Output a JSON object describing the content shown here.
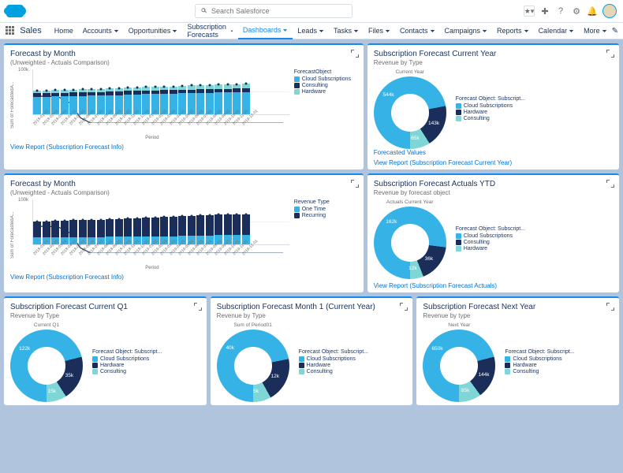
{
  "search_placeholder": "Search Salesforce",
  "app_label": "Sales",
  "nav": [
    "Home",
    "Accounts",
    "Opportunities",
    "Subscription Forecasts",
    "Dashboards",
    "Leads",
    "Tasks",
    "Files",
    "Contacts",
    "Campaigns",
    "Reports",
    "Calendar",
    "More"
  ],
  "nav_active_index": 4,
  "colors": {
    "cloud": "#36b3e6",
    "consulting": "#1b2e5a",
    "hardware": "#7fd6d6",
    "onetime": "#36b3e6",
    "recurring": "#1b2e5a",
    "donut_light": "#36b3e6",
    "donut_dark": "#1b2e5a",
    "donut_teal": "#7fd6d6"
  },
  "periods": [
    "2018-01-01",
    "2018-02-01",
    "2018-03-01",
    "2018-04-01",
    "2018-05-01",
    "2018-06-01",
    "2018-07-01",
    "2018-08-01",
    "2018-09-01",
    "2018-10-01",
    "2018-11-01",
    "2018-12-01",
    "2019-01-01",
    "2019-02-01",
    "2019-03-01",
    "2019-04-01",
    "2019-05-01",
    "2019-06-01",
    "2019-07-01",
    "2019-08-01",
    "2019-09-01",
    "2019-10-01",
    "2019-11-01",
    "2019-12-01"
  ],
  "chart_axis": {
    "ylabel": "Sum of ForecastedA...",
    "ytick": "100k",
    "xlabel": "Period"
  },
  "chart1": {
    "title": "Forecast by Month",
    "subtitle": "(Unweighted - Actuals Comparison)",
    "legend_title": "ForecastObject",
    "legend": [
      "Cloud Subscriptions",
      "Consulting",
      "Hardware"
    ],
    "link": "View Report (Subscription Forecast Info)",
    "series": [
      {
        "a": 38,
        "b": 8,
        "c": 6
      },
      {
        "a": 38,
        "b": 8,
        "c": 6
      },
      {
        "a": 39,
        "b": 8,
        "c": 6
      },
      {
        "a": 39,
        "b": 8,
        "c": 6
      },
      {
        "a": 40,
        "b": 8,
        "c": 6
      },
      {
        "a": 40,
        "b": 8,
        "c": 7
      },
      {
        "a": 41,
        "b": 8,
        "c": 7
      },
      {
        "a": 41,
        "b": 8,
        "c": 7
      },
      {
        "a": 42,
        "b": 8,
        "c": 7
      },
      {
        "a": 42,
        "b": 8,
        "c": 7
      },
      {
        "a": 43,
        "b": 8,
        "c": 7
      },
      {
        "a": 43,
        "b": 8,
        "c": 8
      },
      {
        "a": 44,
        "b": 8,
        "c": 8
      },
      {
        "a": 44,
        "b": 8,
        "c": 8
      },
      {
        "a": 45,
        "b": 8,
        "c": 8
      },
      {
        "a": 45,
        "b": 8,
        "c": 8
      },
      {
        "a": 46,
        "b": 8,
        "c": 8
      },
      {
        "a": 46,
        "b": 8,
        "c": 9
      },
      {
        "a": 47,
        "b": 8,
        "c": 9
      },
      {
        "a": 47,
        "b": 8,
        "c": 9
      },
      {
        "a": 48,
        "b": 8,
        "c": 9
      },
      {
        "a": 48,
        "b": 8,
        "c": 9
      },
      {
        "a": 49,
        "b": 8,
        "c": 9
      },
      {
        "a": 49,
        "b": 8,
        "c": 10
      }
    ],
    "line": [
      50,
      50,
      48,
      38,
      10,
      0,
      0,
      0,
      0,
      0,
      0,
      0,
      0,
      0,
      0,
      0,
      0,
      0,
      0,
      0,
      0,
      0,
      0,
      0
    ]
  },
  "chart2": {
    "title": "Forecast by Month",
    "subtitle": "(Unweighted - Actuals Comparison)",
    "legend_title": "Revenue Type",
    "legend": [
      "One Time",
      "Recurring"
    ],
    "link": "View Report (Subscription Forecast Info)",
    "series": [
      {
        "a": 15,
        "b": 35
      },
      {
        "a": 15,
        "b": 35
      },
      {
        "a": 15,
        "b": 36
      },
      {
        "a": 15,
        "b": 36
      },
      {
        "a": 16,
        "b": 37
      },
      {
        "a": 16,
        "b": 37
      },
      {
        "a": 16,
        "b": 38
      },
      {
        "a": 16,
        "b": 38
      },
      {
        "a": 17,
        "b": 39
      },
      {
        "a": 17,
        "b": 39
      },
      {
        "a": 17,
        "b": 40
      },
      {
        "a": 17,
        "b": 40
      },
      {
        "a": 18,
        "b": 41
      },
      {
        "a": 18,
        "b": 41
      },
      {
        "a": 18,
        "b": 42
      },
      {
        "a": 18,
        "b": 42
      },
      {
        "a": 19,
        "b": 43
      },
      {
        "a": 19,
        "b": 43
      },
      {
        "a": 19,
        "b": 44
      },
      {
        "a": 19,
        "b": 44
      },
      {
        "a": 20,
        "b": 45
      },
      {
        "a": 20,
        "b": 45
      },
      {
        "a": 20,
        "b": 46
      },
      {
        "a": 20,
        "b": 46
      }
    ],
    "line": [
      50,
      50,
      48,
      38,
      10,
      0,
      0,
      0,
      0,
      0,
      0,
      0,
      0,
      0,
      0,
      0,
      0,
      0,
      0,
      0,
      0,
      0,
      0,
      0
    ]
  },
  "donut_cy": {
    "title": "Subscription Forecast Current Year",
    "sub": "Revenue by Type",
    "center": "Current Year",
    "legend_title": "Forecast Object: Subscript...",
    "legend": [
      "Cloud Subscriptions",
      "Hardware",
      "Consulting"
    ],
    "footer": "Forecasted Values",
    "link": "View Report (Subscription Forecast Current Year)",
    "slices": [
      {
        "label": "544k",
        "pct": 72,
        "color": "#36b3e6"
      },
      {
        "label": "143k",
        "pct": 19,
        "color": "#1b2e5a"
      },
      {
        "label": "65k",
        "pct": 9,
        "color": "#7fd6d6"
      }
    ]
  },
  "donut_ytd": {
    "title": "Subscription Forecast Actuals YTD",
    "sub": "Revenue by forecast object",
    "center": "Actuals Current Year",
    "legend_title": "Forecast Object: Subscript...",
    "legend": [
      "Cloud Subscriptions",
      "Consulting",
      "Hardware"
    ],
    "link": "View Report (Subscription Forecast Actuals)",
    "slices": [
      {
        "label": "162k",
        "pct": 77,
        "color": "#36b3e6"
      },
      {
        "label": "36k",
        "pct": 17,
        "color": "#1b2e5a"
      },
      {
        "label": "12k",
        "pct": 6,
        "color": "#7fd6d6"
      }
    ]
  },
  "donut_q1": {
    "title": "Subscription Forecast Current Q1",
    "sub": "Revenue by Type",
    "center": "Current Q1",
    "legend_title": "Forecast Object: Subscript...",
    "legend": [
      "Cloud Subscriptions",
      "Hardware",
      "Consulting"
    ],
    "slices": [
      {
        "label": "122k",
        "pct": 71,
        "color": "#36b3e6"
      },
      {
        "label": "35k",
        "pct": 20,
        "color": "#1b2e5a"
      },
      {
        "label": "15k",
        "pct": 9,
        "color": "#7fd6d6"
      }
    ]
  },
  "donut_m1": {
    "title": "Subscription Forecast Month 1 (Current Year)",
    "sub": "Revenue by Type",
    "center": "Sum of Period01",
    "legend_title": "Forecast Object: Subscript...",
    "legend": [
      "Cloud Subscriptions",
      "Hardware",
      "Consulting"
    ],
    "slices": [
      {
        "label": "40k",
        "pct": 72,
        "color": "#36b3e6"
      },
      {
        "label": "12k",
        "pct": 20,
        "color": "#1b2e5a"
      },
      {
        "label": "5k",
        "pct": 8,
        "color": "#7fd6d6"
      }
    ]
  },
  "donut_ny": {
    "title": "Subscription Forecast Next Year",
    "sub": "Revenue by type",
    "center": "Next Year",
    "legend_title": "Forecast Object: Subscript...",
    "legend": [
      "Cloud Subscriptions",
      "Hardware",
      "Consulting"
    ],
    "slices": [
      {
        "label": "650k",
        "pct": 71,
        "color": "#36b3e6"
      },
      {
        "label": "144k",
        "pct": 19,
        "color": "#1b2e5a"
      },
      {
        "label": "85k",
        "pct": 10,
        "color": "#7fd6d6"
      }
    ]
  }
}
